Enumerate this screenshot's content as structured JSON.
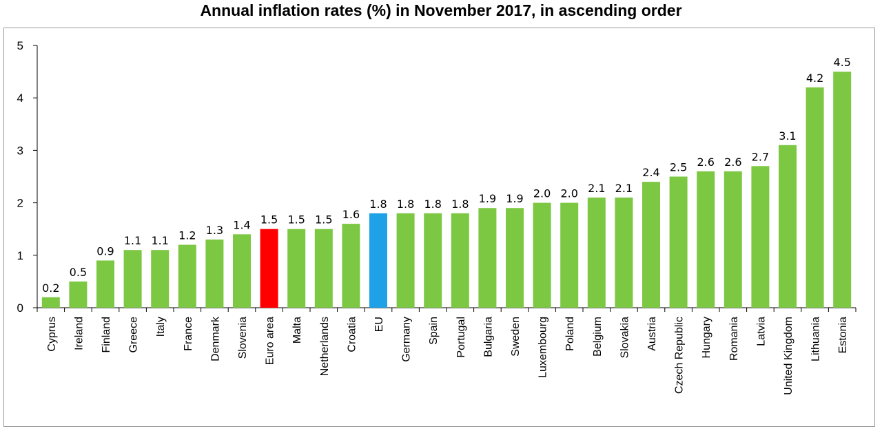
{
  "chart_data": {
    "type": "bar",
    "title": "Annual inflation rates (%) in November 2017, in ascending order",
    "xlabel": "",
    "ylabel": "",
    "ylim": [
      0,
      5
    ],
    "yticks": [
      0,
      1,
      2,
      3,
      4,
      5
    ],
    "grid": false,
    "categories": [
      "Cyprus",
      "Ireland",
      "Finland",
      "Greece",
      "Italy",
      "France",
      "Denmark",
      "Slovenia",
      "Euro area",
      "Malta",
      "Netherlands",
      "Croatia",
      "EU",
      "Germany",
      "Spain",
      "Portugal",
      "Bulgaria",
      "Sweden",
      "Luxembourg",
      "Poland",
      "Belgium",
      "Slovakia",
      "Austria",
      "Czech Republic",
      "Hungary",
      "Romania",
      "Latvia",
      "United Kingdom",
      "Lithuania",
      "Estonia"
    ],
    "values": [
      0.2,
      0.5,
      0.9,
      1.1,
      1.1,
      1.2,
      1.3,
      1.4,
      1.5,
      1.5,
      1.5,
      1.6,
      1.8,
      1.8,
      1.8,
      1.8,
      1.9,
      1.9,
      2.0,
      2.0,
      2.1,
      2.1,
      2.4,
      2.5,
      2.6,
      2.6,
      2.7,
      3.1,
      4.2,
      4.5
    ],
    "value_labels": [
      "0.2",
      "0.5",
      "0.9",
      "1.1",
      "1.1",
      "1.2",
      "1.3",
      "1.4",
      "1.5",
      "1.5",
      "1.5",
      "1.6",
      "1.8",
      "1.8",
      "1.8",
      "1.8",
      "1.9",
      "1.9",
      "2.0",
      "2.0",
      "2.1",
      "2.1",
      "2.4",
      "2.5",
      "2.6",
      "2.6",
      "2.7",
      "3.1",
      "4.2",
      "4.5"
    ],
    "colors": {
      "default": "#7dc843",
      "highlight": {
        "Euro area": "#ff0000",
        "EU": "#1ea1e6"
      },
      "axis": "#000000"
    }
  }
}
